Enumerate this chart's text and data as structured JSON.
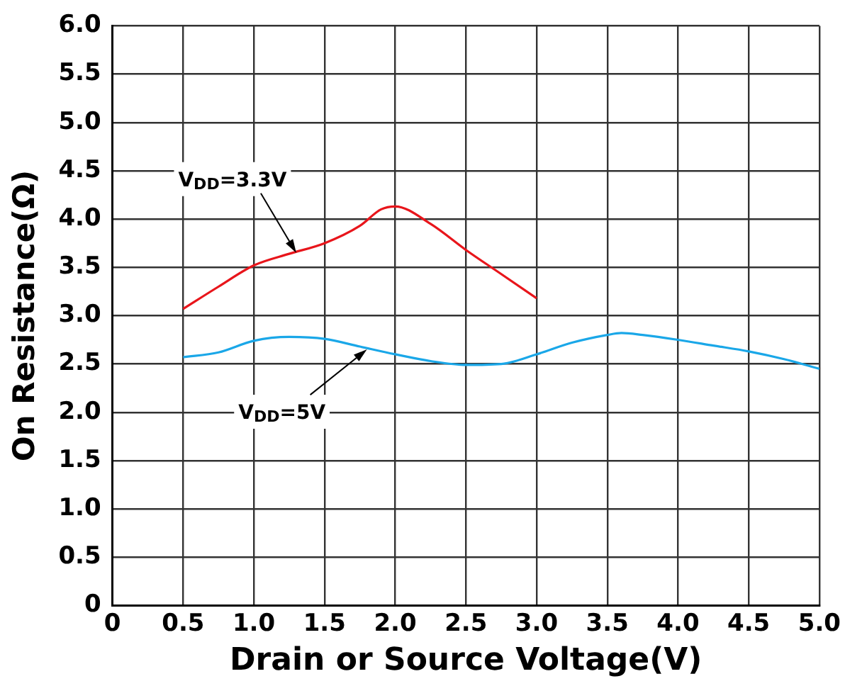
{
  "chart_data": {
    "type": "line",
    "xlabel": "Drain or Source Voltage(V)",
    "ylabel": "On Resistance(Ω)",
    "xlim": [
      0,
      5
    ],
    "ylim": [
      0,
      6
    ],
    "xticks": [
      0,
      0.5,
      {
        "value": 1,
        "label": "1.0"
      },
      1.5,
      {
        "value": 2,
        "label": "2.0"
      },
      2.5,
      {
        "value": 3,
        "label": "3.0"
      },
      3.5,
      {
        "value": 4,
        "label": "4.0"
      },
      4.5,
      {
        "value": 5,
        "label": "5.0"
      }
    ],
    "yticks": [
      0,
      0.5,
      {
        "value": 1,
        "label": "1.0"
      },
      1.5,
      {
        "value": 2,
        "label": "2.0"
      },
      2.5,
      {
        "value": 3,
        "label": "3.0"
      },
      3.5,
      {
        "value": 4,
        "label": "4.0"
      },
      4.5,
      {
        "value": 5,
        "label": "5.0"
      },
      5.5,
      {
        "value": 6,
        "label": "6.0"
      }
    ],
    "grid": true,
    "legend": false,
    "marker": "none",
    "line_style": "solid",
    "series": [
      {
        "color": "#e8151b",
        "x": [
          0.5,
          0.75,
          1,
          1.25,
          1.5,
          1.75,
          1.9,
          2,
          2.25,
          2.5,
          2.75,
          3
        ],
        "values": [
          3.07,
          3.3,
          3.52,
          3.64,
          3.75,
          3.93,
          4.1,
          4.13,
          3.95,
          3.68,
          3.43,
          3.18
        ]
      },
      {
        "color": "#1aa7e8",
        "x": [
          0.5,
          0.75,
          1,
          1.25,
          1.5,
          1.75,
          2,
          2.25,
          2.5,
          2.75,
          3,
          3.25,
          3.5,
          3.6,
          3.75,
          4,
          4.25,
          4.5,
          4.75,
          5
        ],
        "values": [
          2.57,
          2.62,
          2.74,
          2.78,
          2.76,
          2.68,
          2.6,
          2.53,
          2.49,
          2.5,
          2.6,
          2.72,
          2.8,
          2.82,
          2.8,
          2.75,
          2.69,
          2.63,
          2.55,
          2.45
        ]
      }
    ],
    "annotations": [
      {
        "text": "V$_{DD}$=3.3V",
        "x": 1.3,
        "y": 3.65
      },
      {
        "text": "V$_{DD}$=5V",
        "x": 1.8,
        "y": 2.65
      }
    ]
  }
}
